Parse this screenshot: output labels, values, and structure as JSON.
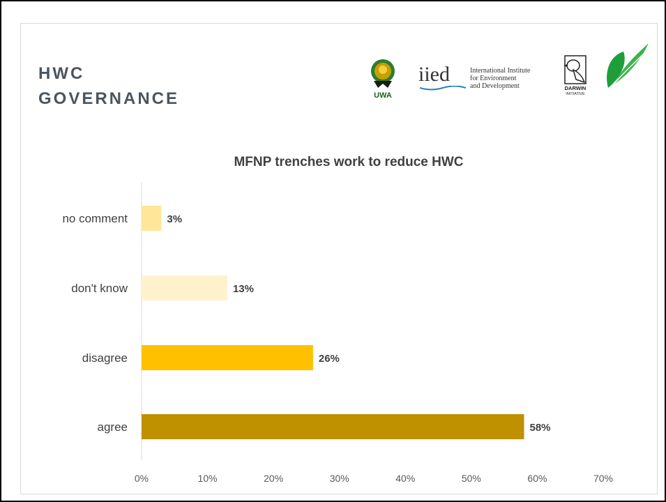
{
  "heading": {
    "line1": "HWC",
    "line2": "GOVERNANCE"
  },
  "logos": {
    "uwa_text": "UWA",
    "iied_word": "iied",
    "iied_line1": "International Institute",
    "iied_line2": "for Environment",
    "iied_line3": "and Development",
    "darwin_text": "DARWIN",
    "darwin_sub": "INITIATIVE"
  },
  "colors": {
    "no_comment": "#FFE699",
    "dont_know": "#FFF2CC",
    "disagree": "#FFC000",
    "agree": "#BF9000"
  },
  "chart_data": {
    "type": "bar",
    "orientation": "horizontal",
    "title": "MFNP trenches work to reduce HWC",
    "categories": [
      "no comment",
      "don't know",
      "disagree",
      "agree"
    ],
    "values": [
      3,
      13,
      26,
      58
    ],
    "value_labels": [
      "3%",
      "13%",
      "26%",
      "58%"
    ],
    "xlim": [
      0,
      70
    ],
    "x_ticks": [
      "0%",
      "10%",
      "20%",
      "30%",
      "40%",
      "50%",
      "60%",
      "70%"
    ],
    "grid": false,
    "legend": "none"
  }
}
